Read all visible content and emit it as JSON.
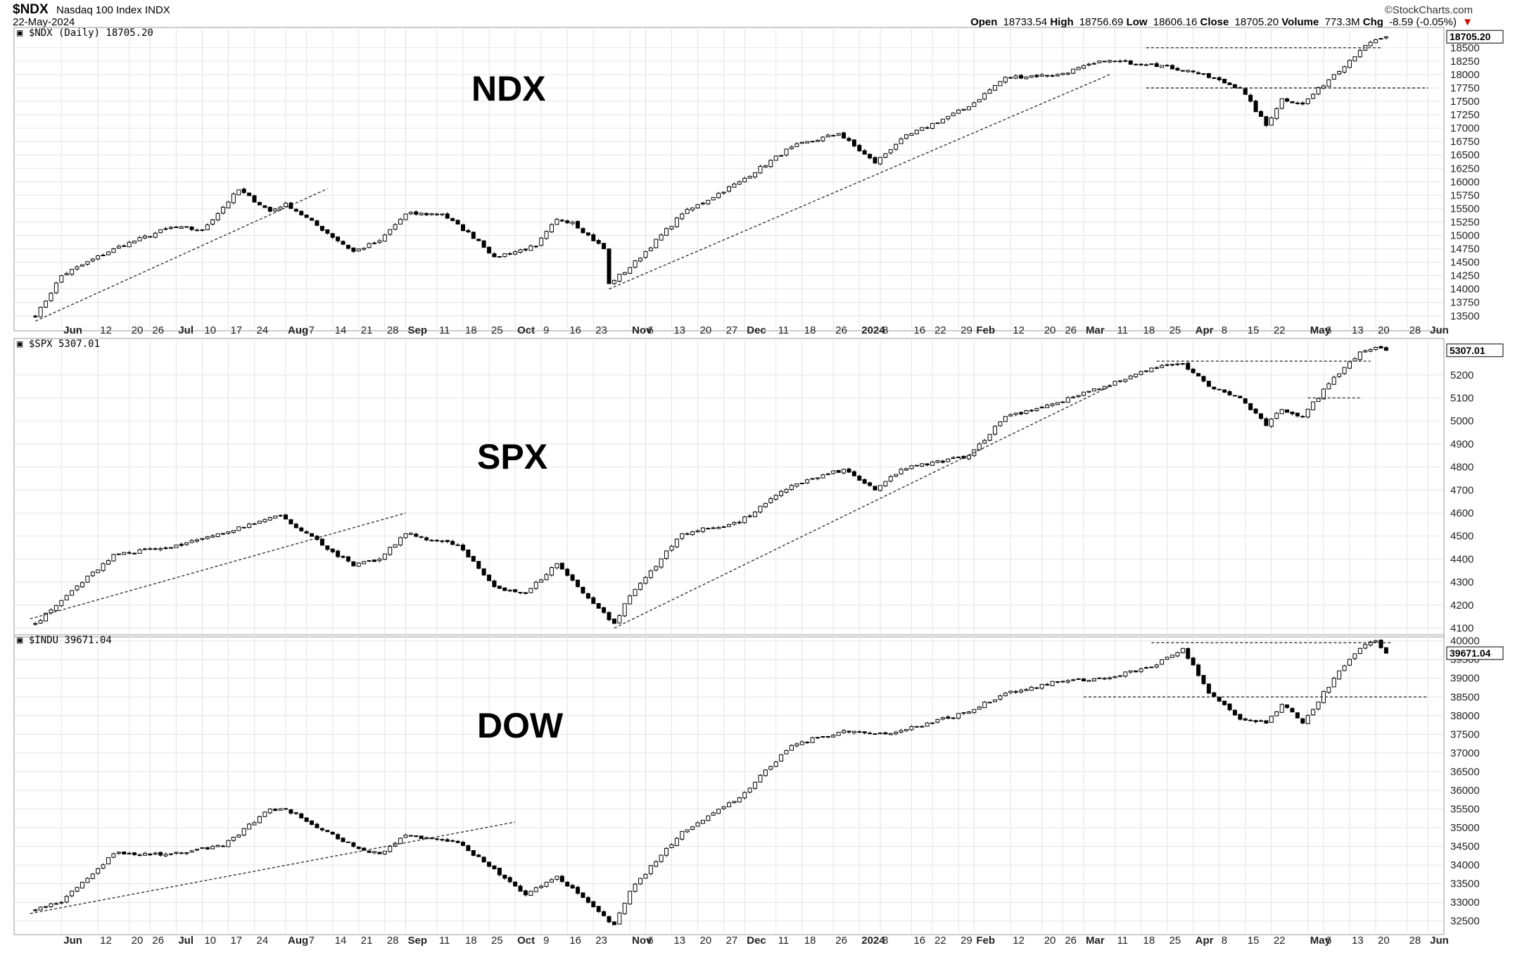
{
  "header": {
    "symbol": "$NDX",
    "name": "Nasdaq 100 Index",
    "exchange": "INDX",
    "date": "22-May-2024",
    "brand": "©StockCharts.com",
    "open_label": "Open",
    "open": "18733.54",
    "high_label": "High",
    "high": "18756.69",
    "low_label": "Low",
    "low": "18606.16",
    "close_label": "Close",
    "close": "18705.20",
    "volume_label": "Volume",
    "volume": "773.3M",
    "chg_label": "Chg",
    "chg": "-8.59 (-0.05%)"
  },
  "x_labels": [
    "Jun",
    "12",
    "20",
    "26",
    "Jul",
    "10",
    "17",
    "24",
    "Aug",
    "7",
    "14",
    "21",
    "28",
    "Sep",
    "11",
    "18",
    "25",
    "Oct",
    "9",
    "16",
    "23",
    "Nov",
    "6",
    "13",
    "20",
    "27",
    "Dec",
    "11",
    "18",
    "26",
    "2024",
    "8",
    "16",
    "22",
    "29",
    "Feb",
    "12",
    "20",
    "26",
    "Mar",
    "11",
    "18",
    "25",
    "Apr",
    "8",
    "15",
    "22",
    "May",
    "6",
    "13",
    "20",
    "28",
    "Jun"
  ],
  "x_bold": [
    "Jun",
    "Jul",
    "Aug",
    "Sep",
    "Oct",
    "Nov",
    "Dec",
    "2024",
    "Feb",
    "Mar",
    "Apr",
    "May"
  ],
  "chart_data": [
    {
      "type": "candlestick",
      "panel_title": "$NDX (Daily) 18705.20",
      "label": "NDX",
      "last_value": "18705.20",
      "ylim": [
        13300,
        18800
      ],
      "y_ticks": [
        13500,
        13750,
        14000,
        14250,
        14500,
        14750,
        15000,
        15250,
        15500,
        15750,
        16000,
        16250,
        16500,
        16750,
        17000,
        17250,
        17500,
        17750,
        18000,
        18250,
        18500
      ],
      "x_dates": [
        "2023-05-25",
        "2023-06-01",
        "2023-06-15",
        "2023-06-30",
        "2023-07-10",
        "2023-07-19",
        "2023-07-27",
        "2023-08-01",
        "2023-08-18",
        "2023-08-25",
        "2023-09-01",
        "2023-09-12",
        "2023-09-21",
        "2023-09-26",
        "2023-10-06",
        "2023-10-12",
        "2023-10-17",
        "2023-10-25",
        "2023-10-26",
        "2023-11-01",
        "2023-11-15",
        "2023-11-30",
        "2023-12-14",
        "2023-12-27",
        "2024-01-05",
        "2024-01-12",
        "2024-01-31",
        "2024-02-09",
        "2024-02-23",
        "2024-03-07",
        "2024-03-20",
        "2024-04-01",
        "2024-04-12",
        "2024-04-19",
        "2024-04-24",
        "2024-04-30",
        "2024-05-08",
        "2024-05-15",
        "2024-05-20",
        "2024-05-22"
      ],
      "close": [
        13480,
        14250,
        14750,
        15150,
        15100,
        15850,
        15450,
        15600,
        14700,
        14900,
        15400,
        15400,
        14900,
        14600,
        14800,
        15300,
        15250,
        14750,
        14100,
        14400,
        15400,
        16000,
        16650,
        16900,
        16350,
        16800,
        17400,
        17950,
        18000,
        18250,
        18200,
        18050,
        17750,
        17050,
        17550,
        17450,
        18000,
        18450,
        18650,
        18705
      ],
      "trendlines": [
        {
          "x": [
            "2023-05-25",
            "2023-08-11"
          ],
          "y": [
            13400,
            15870
          ]
        },
        {
          "x": [
            "2023-10-26",
            "2024-03-08"
          ],
          "y": [
            14000,
            18000
          ]
        },
        {
          "x": [
            "2024-03-19",
            "2024-05-21"
          ],
          "y": [
            18500,
            18500
          ]
        },
        {
          "x": [
            "2024-03-19",
            "2024-06-01"
          ],
          "y": [
            17750,
            17750
          ]
        }
      ]
    },
    {
      "type": "candlestick",
      "panel_title": "$SPX 5307.01",
      "label": "SPX",
      "last_value": "5307.01",
      "ylim": [
        4080,
        5340
      ],
      "y_ticks": [
        4100,
        4200,
        4300,
        4400,
        4500,
        4600,
        4700,
        4800,
        4900,
        5000,
        5100,
        5200
      ],
      "x_dates": [
        "2023-05-25",
        "2023-06-01",
        "2023-06-15",
        "2023-06-30",
        "2023-07-14",
        "2023-07-27",
        "2023-07-31",
        "2023-08-18",
        "2023-08-25",
        "2023-09-01",
        "2023-09-15",
        "2023-09-26",
        "2023-10-04",
        "2023-10-12",
        "2023-10-20",
        "2023-10-27",
        "2023-11-01",
        "2023-11-15",
        "2023-11-30",
        "2023-12-14",
        "2023-12-28",
        "2024-01-05",
        "2024-01-12",
        "2024-01-31",
        "2024-02-09",
        "2024-02-23",
        "2024-03-07",
        "2024-03-20",
        "2024-03-28",
        "2024-04-04",
        "2024-04-12",
        "2024-04-19",
        "2024-04-24",
        "2024-04-30",
        "2024-05-08",
        "2024-05-15",
        "2024-05-20",
        "2024-05-22"
      ],
      "close": [
        4120,
        4220,
        4420,
        4450,
        4510,
        4580,
        4590,
        4370,
        4400,
        4510,
        4460,
        4280,
        4250,
        4380,
        4230,
        4120,
        4240,
        4510,
        4560,
        4720,
        4790,
        4700,
        4790,
        4850,
        5020,
        5080,
        5150,
        5230,
        5250,
        5150,
        5100,
        4980,
        5050,
        5020,
        5190,
        5300,
        5320,
        5307
      ],
      "trendlines": [
        {
          "x": [
            "2023-05-24",
            "2023-09-01"
          ],
          "y": [
            4140,
            4600
          ]
        },
        {
          "x": [
            "2023-10-27",
            "2024-03-08"
          ],
          "y": [
            4100,
            5150
          ]
        },
        {
          "x": [
            "2024-03-21",
            "2024-05-17"
          ],
          "y": [
            5260,
            5260
          ]
        },
        {
          "x": [
            "2024-05-01",
            "2024-05-15"
          ],
          "y": [
            5100,
            5100
          ]
        }
      ]
    },
    {
      "type": "candlestick",
      "panel_title": "$INDU 39671.04",
      "label": "DOW",
      "last_value": "39671.04",
      "ylim": [
        32250,
        40050
      ],
      "y_ticks": [
        32500,
        33000,
        33500,
        34000,
        34500,
        35000,
        35500,
        36000,
        36500,
        37000,
        37500,
        38000,
        38500,
        39000,
        39500,
        40000
      ],
      "x_dates": [
        "2023-05-25",
        "2023-06-01",
        "2023-06-15",
        "2023-06-30",
        "2023-07-14",
        "2023-07-27",
        "2023-08-01",
        "2023-08-18",
        "2023-08-25",
        "2023-09-01",
        "2023-09-15",
        "2023-09-26",
        "2023-10-04",
        "2023-10-12",
        "2023-10-20",
        "2023-10-27",
        "2023-11-01",
        "2023-11-15",
        "2023-11-30",
        "2023-12-14",
        "2023-12-28",
        "2024-01-05",
        "2024-01-12",
        "2024-01-31",
        "2024-02-09",
        "2024-02-23",
        "2024-03-07",
        "2024-03-20",
        "2024-03-28",
        "2024-04-04",
        "2024-04-12",
        "2024-04-19",
        "2024-04-24",
        "2024-04-30",
        "2024-05-08",
        "2024-05-15",
        "2024-05-20",
        "2024-05-22"
      ],
      "close": [
        32800,
        33000,
        34300,
        34300,
        34500,
        35500,
        35500,
        34500,
        34300,
        34800,
        34600,
        33900,
        33200,
        33700,
        33000,
        32400,
        33300,
        34900,
        35800,
        37200,
        37600,
        37500,
        37600,
        38100,
        38600,
        38900,
        39000,
        39300,
        39800,
        38600,
        37900,
        37800,
        38300,
        37800,
        39000,
        39800,
        40000,
        39671
      ],
      "trendlines": [
        {
          "x": [
            "2023-05-24",
            "2023-09-30"
          ],
          "y": [
            32700,
            35150
          ]
        },
        {
          "x": [
            "2024-03-20",
            "2024-05-23"
          ],
          "y": [
            39950,
            39950
          ]
        },
        {
          "x": [
            "2024-03-01",
            "2024-06-01"
          ],
          "y": [
            38500,
            38500
          ]
        }
      ]
    }
  ]
}
